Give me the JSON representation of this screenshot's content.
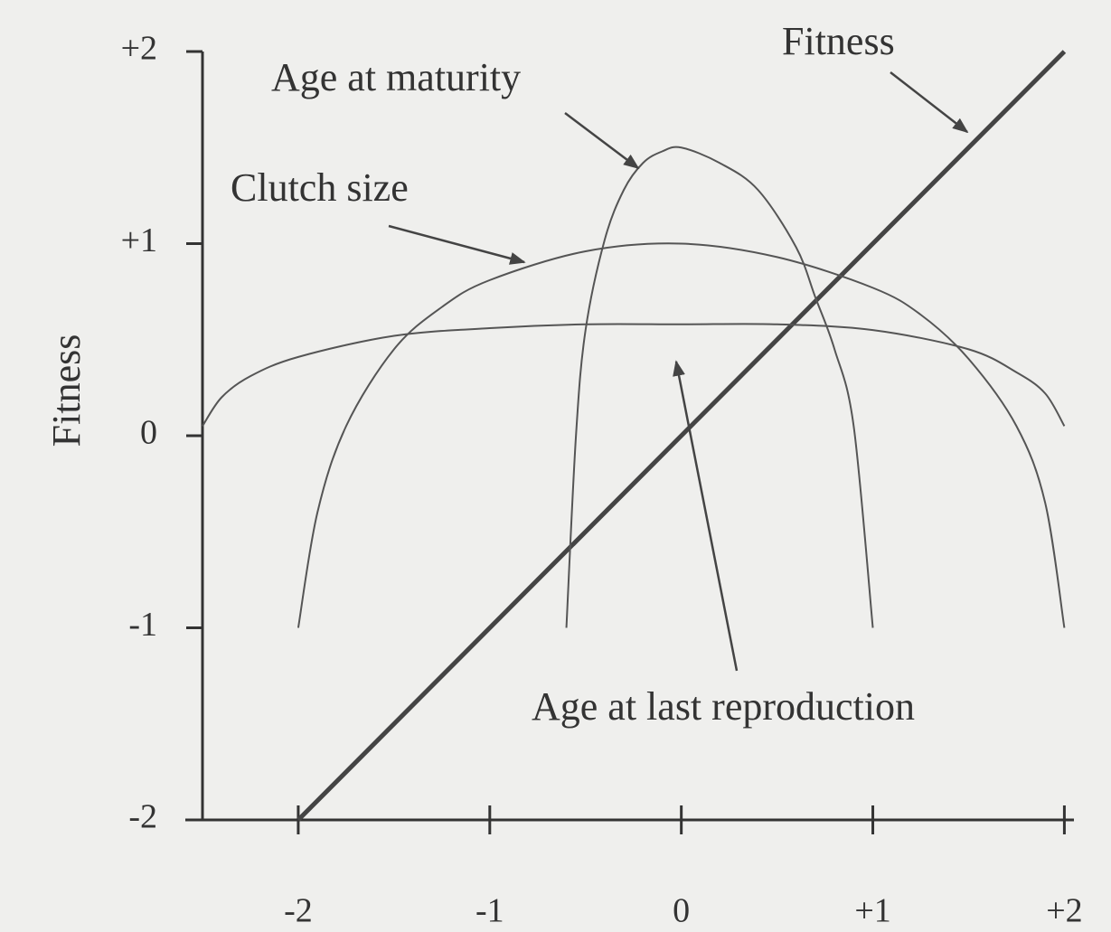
{
  "chart_data": {
    "type": "line",
    "ylabel": "Fitness",
    "xlim": [
      -2.5,
      2.05
    ],
    "ylim": [
      -2,
      2
    ],
    "xticks": [
      -2,
      -1,
      0,
      {
        "value": 1,
        "label": "+1"
      },
      {
        "value": 2,
        "label": "+2"
      }
    ],
    "yticks": [
      {
        "value": 2,
        "label": "+2"
      },
      {
        "value": 1,
        "label": "+1"
      },
      0,
      -1,
      -2
    ],
    "grid": false,
    "series": [
      {
        "name": "Fitness",
        "color": "#444444",
        "width": 5,
        "x": [
          -2,
          2
        ],
        "values": [
          -2,
          2
        ]
      },
      {
        "name": "Age at maturity",
        "color": "#555555",
        "width": 2,
        "x": [
          -0.6,
          -0.55,
          -0.5,
          -0.4,
          -0.3,
          -0.2,
          -0.1,
          0,
          0.2,
          0.4,
          0.6,
          0.7,
          0.8,
          0.9,
          1.0
        ],
        "values": [
          -1,
          0,
          0.55,
          1.02,
          1.28,
          1.42,
          1.48,
          1.5,
          1.42,
          1.28,
          0.98,
          0.72,
          0.45,
          0.05,
          -1
        ]
      },
      {
        "name": "Clutch size",
        "color": "#555555",
        "width": 2,
        "x": [
          -2,
          -1.9,
          -1.75,
          -1.5,
          -1.25,
          -1,
          -0.5,
          0,
          0.5,
          1,
          1.25,
          1.5,
          1.75,
          1.9,
          2
        ],
        "values": [
          -1,
          -0.4,
          0.05,
          0.45,
          0.67,
          0.81,
          0.96,
          1.0,
          0.93,
          0.77,
          0.63,
          0.4,
          0.05,
          -0.35,
          -1
        ]
      },
      {
        "name": "Age at last reproduction",
        "color": "#555555",
        "width": 2,
        "x": [
          -2.5,
          -2.4,
          -2.25,
          -2,
          -1.5,
          -1,
          -0.5,
          0,
          0.5,
          1,
          1.5,
          1.75,
          1.9,
          2
        ],
        "values": [
          0.05,
          0.2,
          0.31,
          0.41,
          0.52,
          0.56,
          0.58,
          0.58,
          0.58,
          0.55,
          0.45,
          0.33,
          0.22,
          0.05
        ]
      }
    ]
  }
}
